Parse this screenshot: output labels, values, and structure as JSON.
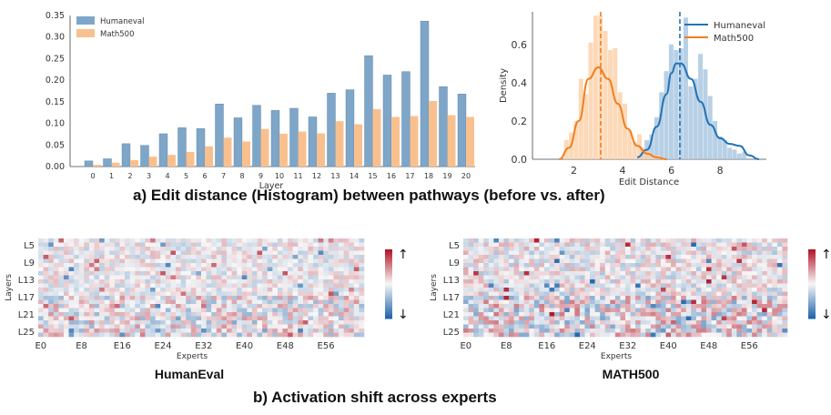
{
  "caption_a": "a) Edit distance (Histogram) between pathways (before vs. after)",
  "caption_b": "b) Activation shift across experts",
  "chart_data": [
    {
      "type": "bar",
      "xlabel": "Layer",
      "ylabel": "",
      "ylim": [
        0,
        0.35
      ],
      "yticks": [
        "0.00",
        "0.05",
        "0.10",
        "0.15",
        "0.20",
        "0.25",
        "0.30",
        "0.35"
      ],
      "categories": [
        "0",
        "1",
        "2",
        "3",
        "4",
        "5",
        "6",
        "7",
        "8",
        "9",
        "10",
        "11",
        "12",
        "13",
        "14",
        "15",
        "16",
        "17",
        "18",
        "19",
        "20"
      ],
      "legend_position": "top-left",
      "series": [
        {
          "name": "Humaneval",
          "color": "#7ea6c8",
          "values": [
            0.013,
            0.018,
            0.053,
            0.049,
            0.076,
            0.09,
            0.088,
            0.145,
            0.113,
            0.142,
            0.13,
            0.135,
            0.115,
            0.17,
            0.178,
            0.257,
            0.212,
            0.22,
            0.337,
            0.185,
            0.168
          ]
        },
        {
          "name": "Math500",
          "color": "#f9c08f",
          "values": [
            0.004,
            0.009,
            0.015,
            0.023,
            0.027,
            0.034,
            0.047,
            0.067,
            0.058,
            0.087,
            0.076,
            0.081,
            0.077,
            0.105,
            0.098,
            0.133,
            0.115,
            0.117,
            0.152,
            0.119,
            0.115
          ]
        }
      ]
    },
    {
      "type": "area",
      "xlabel": "Edit Distance",
      "ylabel": "Density",
      "xlim": [
        0.3,
        9.9
      ],
      "ylim": [
        0,
        0.77
      ],
      "xticks": [
        "2",
        "4",
        "6",
        "8"
      ],
      "yticks": [
        "0.0",
        "0.2",
        "0.4",
        "0.6"
      ],
      "legend_position": "top-right",
      "series": [
        {
          "name": "Humaneval",
          "color": "#2273b5",
          "mean": 6.35,
          "hist_x": [
            4.8,
            5.0,
            5.2,
            5.4,
            5.6,
            5.8,
            6.0,
            6.2,
            6.4,
            6.6,
            6.8,
            7.0,
            7.2,
            7.4,
            7.6,
            7.8,
            8.0,
            8.2,
            8.4,
            8.6,
            8.8,
            9.0
          ],
          "hist_y": [
            0.06,
            0.1,
            0.13,
            0.22,
            0.35,
            0.46,
            0.6,
            0.57,
            0.58,
            0.74,
            0.38,
            0.42,
            0.55,
            0.47,
            0.33,
            0.2,
            0.12,
            0.1,
            0.06,
            0.05,
            0.03,
            0.04
          ],
          "kde_x": [
            4.6,
            5.0,
            5.4,
            5.8,
            6.0,
            6.2,
            6.4,
            6.8,
            7.2,
            7.6,
            8.0,
            8.4,
            8.8,
            9.2,
            9.6
          ],
          "kde_y": [
            0.01,
            0.05,
            0.17,
            0.34,
            0.45,
            0.5,
            0.5,
            0.42,
            0.3,
            0.18,
            0.11,
            0.08,
            0.07,
            0.02,
            0.0
          ]
        },
        {
          "name": "Math500",
          "color": "#f07f1e",
          "mean": 3.1,
          "hist_x": [
            1.7,
            1.9,
            2.1,
            2.3,
            2.5,
            2.7,
            2.9,
            3.1,
            3.3,
            3.5,
            3.7,
            3.9,
            4.1,
            4.3,
            4.5,
            4.7,
            4.9,
            5.1,
            5.3,
            5.5
          ],
          "hist_y": [
            0.1,
            0.14,
            0.2,
            0.42,
            0.34,
            0.61,
            0.75,
            0.75,
            0.67,
            0.57,
            0.58,
            0.35,
            0.29,
            0.15,
            0.09,
            0.13,
            0.06,
            0.04,
            0.02,
            0.02
          ],
          "kde_x": [
            1.4,
            1.8,
            2.2,
            2.6,
            3.0,
            3.4,
            3.8,
            4.2,
            4.6,
            5.0,
            5.4,
            5.8
          ],
          "kde_y": [
            0.0,
            0.06,
            0.2,
            0.42,
            0.48,
            0.42,
            0.29,
            0.16,
            0.07,
            0.03,
            0.01,
            0.0
          ]
        }
      ]
    },
    {
      "type": "heatmap",
      "title": "HumanEval",
      "xlabel": "Experts",
      "ylabel": "Layers",
      "x_ticks": [
        "E0",
        "E8",
        "E16",
        "E24",
        "E32",
        "E40",
        "E48",
        "E56"
      ],
      "y_ticks": [
        "L5",
        "L9",
        "L13",
        "L17",
        "L21",
        "L25"
      ],
      "shape": [
        24,
        64
      ],
      "seed": 7,
      "intensity": 0.8,
      "colorbar_labels": [
        "↑",
        "↓"
      ]
    },
    {
      "type": "heatmap",
      "title": "MATH500",
      "xlabel": "Experts",
      "ylabel": "Layers",
      "x_ticks": [
        "E0",
        "E8",
        "E16",
        "E24",
        "E32",
        "E40",
        "E48",
        "E56"
      ],
      "y_ticks": [
        "L5",
        "L9",
        "L13",
        "L17",
        "L21",
        "L25"
      ],
      "shape": [
        24,
        64
      ],
      "seed": 19,
      "intensity": 1.0,
      "colorbar_labels": [
        "↑",
        "↓"
      ]
    }
  ]
}
